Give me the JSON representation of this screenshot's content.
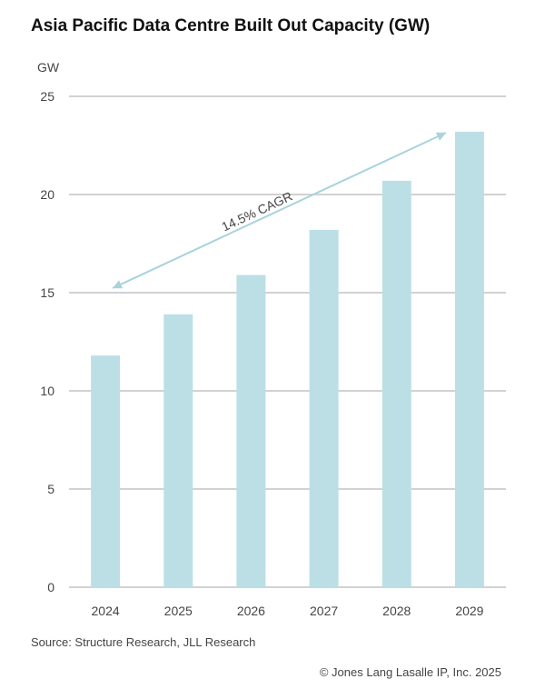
{
  "chart_data": {
    "type": "bar",
    "title": "Asia Pacific Data Centre Built Out Capacity (GW)",
    "ylabel": "GW",
    "xlabel": "",
    "categories": [
      "2024",
      "2025",
      "2026",
      "2027",
      "2028",
      "2029"
    ],
    "values": [
      11.8,
      13.9,
      15.9,
      18.2,
      20.7,
      23.2
    ],
    "ylim": [
      0,
      25
    ],
    "yticks": [
      0,
      5,
      10,
      15,
      20,
      25
    ],
    "grid": true,
    "bar_color": "#bcdfe6",
    "annotation": {
      "text": "14.5% CAGR",
      "from": "2024",
      "to": "2029",
      "color": "#a9d3dd"
    }
  },
  "source": "Source: Structure Research, JLL Research",
  "copyright": "© Jones Lang Lasalle IP, Inc. 2025"
}
